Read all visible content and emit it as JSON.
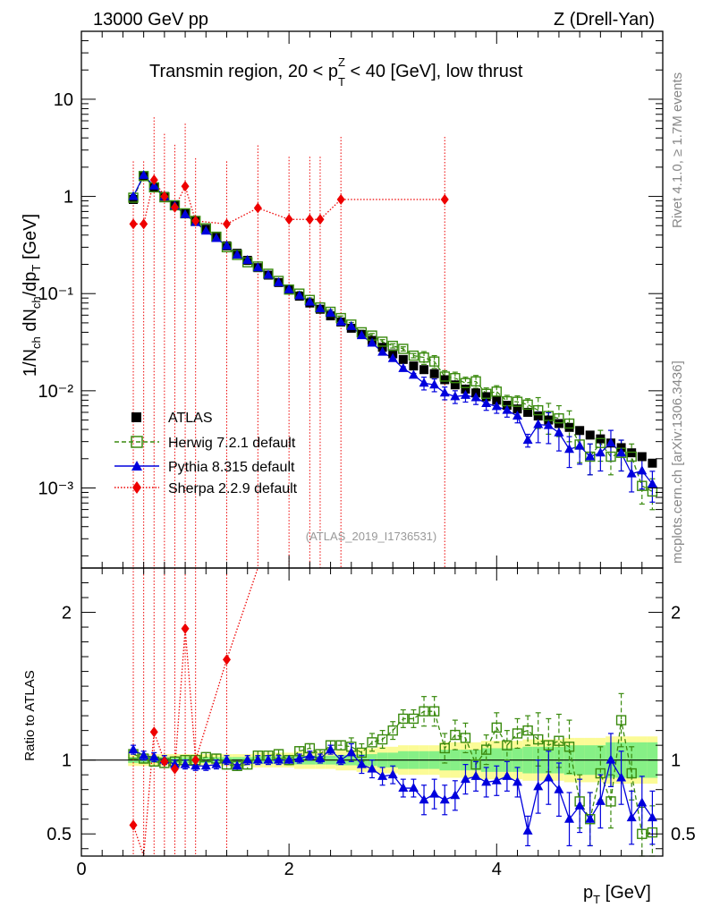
{
  "header": {
    "left": "13000 GeV pp",
    "right": "Z (Drell-Yan)",
    "side_rivet": "Rivet 4.1.0, ≥ 1.7M events",
    "side_url": "mcplots.cern.ch [arXiv:1306.3436]"
  },
  "chart_data": {
    "type": "scatter",
    "title_prefix": "Transmin region, 20 < p",
    "title_sup": "Z",
    "title_sub": "T",
    "title_suffix": " < 40 [GeV], low thrust",
    "watermark": "(ATLAS_2019_I1736531)",
    "ylabel_main": "1/N_ch dN_ch/dp_T [GeV]",
    "ylabel_ratio": "Ratio to ATLAS",
    "xlabel_main": "p",
    "xlabel_sub": "T",
    "xlabel_unit": " [GeV]",
    "xlim": [
      0,
      5.6
    ],
    "ylim_main": [
      0.00015,
      50
    ],
    "ylim_ratio": [
      0.35,
      2.3
    ],
    "main_ytick_labels": {
      "10": "10",
      "1": "1",
      "0.1": "10⁻¹",
      "0.01": "10⁻²",
      "0.001": "10⁻³"
    },
    "ratio_ticks": [
      0.5,
      1,
      2
    ],
    "x_ticks": [
      0,
      2,
      4
    ],
    "legend": [
      "ATLAS",
      "Herwig 7.2.1 default",
      "Pythia 8.315 default",
      "Sherpa 2.2.9 default"
    ],
    "colors": {
      "atlas": "#000000",
      "herwig": "#3a8a0e",
      "pythia": "#0000dd",
      "sherpa": "#ee0000",
      "band_inner": "#86f086",
      "band_outer": "#fbfb96"
    },
    "x": [
      0.5,
      0.6,
      0.7,
      0.8,
      0.9,
      1.0,
      1.1,
      1.2,
      1.3,
      1.4,
      1.5,
      1.6,
      1.7,
      1.8,
      1.9,
      2.0,
      2.1,
      2.2,
      2.3,
      2.4,
      2.5,
      2.6,
      2.7,
      2.8,
      2.9,
      3.0,
      3.1,
      3.2,
      3.3,
      3.4,
      3.5,
      3.6,
      3.7,
      3.8,
      3.9,
      4.0,
      4.1,
      4.2,
      4.3,
      4.4,
      4.5,
      4.6,
      4.7,
      4.8,
      4.9,
      5.0,
      5.1,
      5.2,
      5.3,
      5.4,
      5.5
    ],
    "atlas": [
      0.93,
      1.6,
      1.25,
      1.0,
      0.82,
      0.67,
      0.56,
      0.46,
      0.38,
      0.31,
      0.26,
      0.22,
      0.185,
      0.155,
      0.13,
      0.11,
      0.094,
      0.08,
      0.069,
      0.059,
      0.051,
      0.044,
      0.038,
      0.033,
      0.028,
      0.024,
      0.021,
      0.018,
      0.0165,
      0.015,
      0.013,
      0.0115,
      0.0104,
      0.0095,
      0.0087,
      0.008,
      0.0071,
      0.0065,
      0.006,
      0.0055,
      0.005,
      0.0046,
      0.0042,
      0.0039,
      0.0035,
      0.0032,
      0.0029,
      0.0026,
      0.0023,
      0.0021,
      0.0018
    ],
    "herwig": [
      0.97,
      1.62,
      1.24,
      0.98,
      0.81,
      0.67,
      0.56,
      0.47,
      0.385,
      0.3,
      0.25,
      0.21,
      0.19,
      0.16,
      0.135,
      0.11,
      0.1,
      0.086,
      0.072,
      0.065,
      0.056,
      0.048,
      0.04,
      0.037,
      0.032,
      0.029,
      0.027,
      0.023,
      0.022,
      0.02,
      0.014,
      0.0135,
      0.012,
      0.0125,
      0.0093,
      0.0098,
      0.0078,
      0.0077,
      0.0072,
      0.0063,
      0.0055,
      0.0052,
      0.0046,
      0.0028,
      0.0021,
      0.0029,
      0.0021,
      0.0023,
      0.0021,
      0.00105,
      0.00092
    ],
    "pythia": [
      1.0,
      1.65,
      1.28,
      1.0,
      0.8,
      0.65,
      0.54,
      0.44,
      0.37,
      0.31,
      0.25,
      0.22,
      0.185,
      0.155,
      0.13,
      0.11,
      0.095,
      0.082,
      0.07,
      0.063,
      0.051,
      0.046,
      0.037,
      0.031,
      0.025,
      0.0215,
      0.017,
      0.0145,
      0.012,
      0.0115,
      0.0095,
      0.0087,
      0.009,
      0.0085,
      0.0074,
      0.0069,
      0.0063,
      0.0055,
      0.0031,
      0.0045,
      0.0044,
      0.0037,
      0.0025,
      0.0027,
      0.0021,
      0.0023,
      0.0029,
      0.0023,
      0.0014,
      0.0015,
      0.0011
    ],
    "sherpa_x": [
      0.5,
      0.6,
      0.7,
      0.8,
      0.9,
      1.0,
      1.1,
      1.4,
      1.7,
      2.0,
      2.2,
      2.3,
      2.5,
      3.5
    ],
    "sherpa": [
      0.52,
      0.52,
      1.48,
      1.0,
      0.77,
      1.27,
      0.56,
      0.52,
      0.76,
      0.58,
      0.58,
      0.58,
      0.93,
      0.93
    ],
    "ratio_herwig": [
      1.04,
      1.01,
      0.99,
      0.98,
      0.99,
      1.0,
      1.0,
      1.02,
      1.01,
      0.97,
      0.96,
      0.97,
      1.03,
      1.03,
      1.04,
      1.0,
      1.06,
      1.08,
      1.04,
      1.1,
      1.1,
      1.09,
      1.05,
      1.12,
      1.14,
      1.2,
      1.28,
      1.28,
      1.33,
      1.33,
      1.08,
      1.17,
      1.15,
      0.97,
      1.07,
      1.22,
      1.1,
      1.18,
      1.2,
      1.14,
      1.1,
      1.13,
      1.09,
      0.72,
      0.6,
      0.91,
      0.72,
      1.27,
      0.91,
      0.5,
      0.51
    ],
    "ratio_pythia": [
      1.07,
      1.03,
      1.02,
      1.0,
      0.97,
      0.97,
      0.96,
      0.96,
      0.97,
      1.0,
      0.96,
      1.0,
      1.0,
      1.0,
      1.0,
      1.0,
      1.01,
      1.03,
      1.01,
      1.07,
      1.0,
      1.05,
      0.97,
      0.94,
      0.89,
      0.9,
      0.81,
      0.81,
      0.73,
      0.77,
      0.73,
      0.76,
      0.87,
      0.89,
      0.85,
      0.86,
      0.89,
      0.85,
      0.52,
      0.82,
      0.88,
      0.8,
      0.6,
      0.69,
      0.6,
      0.72,
      1.0,
      0.88,
      0.61,
      0.71,
      0.61
    ],
    "ratio_sherpa_x": [
      0.5,
      0.6,
      0.7,
      0.8,
      0.9,
      1.0,
      1.1,
      1.4
    ],
    "ratio_sherpa": [
      0.56,
      0.33,
      1.19,
      0.99,
      0.94,
      1.89,
      1.0,
      1.68
    ],
    "band_inner": [
      0.02,
      0.02,
      0.02,
      0.02,
      0.02,
      0.02,
      0.02,
      0.02,
      0.02,
      0.02,
      0.02,
      0.02,
      0.025,
      0.025,
      0.025,
      0.025,
      0.03,
      0.03,
      0.03,
      0.03,
      0.035,
      0.035,
      0.04,
      0.04,
      0.05,
      0.05,
      0.06,
      0.06,
      0.06,
      0.06,
      0.07,
      0.07,
      0.07,
      0.07,
      0.08,
      0.08,
      0.08,
      0.08,
      0.09,
      0.09,
      0.09,
      0.09,
      0.1,
      0.1,
      0.1,
      0.1,
      0.12,
      0.12,
      0.12,
      0.12,
      0.12
    ],
    "band_outer": [
      0.04,
      0.04,
      0.04,
      0.04,
      0.04,
      0.04,
      0.04,
      0.04,
      0.04,
      0.04,
      0.04,
      0.04,
      0.05,
      0.05,
      0.05,
      0.05,
      0.06,
      0.06,
      0.06,
      0.06,
      0.07,
      0.07,
      0.08,
      0.08,
      0.09,
      0.09,
      0.1,
      0.1,
      0.1,
      0.1,
      0.12,
      0.12,
      0.12,
      0.12,
      0.13,
      0.13,
      0.13,
      0.13,
      0.14,
      0.14,
      0.14,
      0.14,
      0.15,
      0.15,
      0.15,
      0.15,
      0.16,
      0.16,
      0.16,
      0.16,
      0.16
    ]
  }
}
